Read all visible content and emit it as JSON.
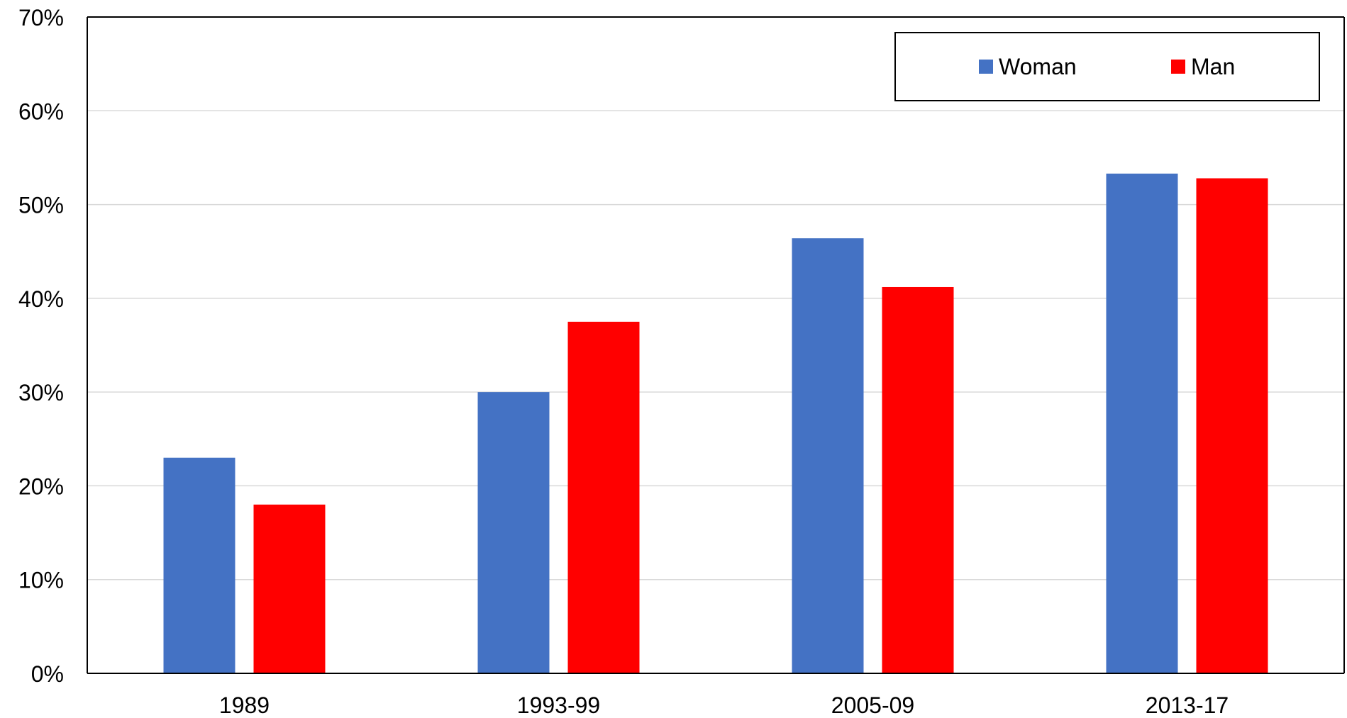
{
  "chart_data": {
    "type": "bar",
    "title": "",
    "xlabel": "",
    "ylabel": "",
    "categories": [
      "1989",
      "1993-99",
      "2005-09",
      "2013-17"
    ],
    "series": [
      {
        "name": "Woman",
        "color": "#4472C4",
        "values": [
          0.23,
          0.3,
          0.464,
          0.533
        ]
      },
      {
        "name": "Man",
        "color": "#FF0000",
        "values": [
          0.18,
          0.375,
          0.412,
          0.528
        ]
      }
    ],
    "ylim": [
      0,
      0.7
    ],
    "yticks": [
      0,
      0.1,
      0.2,
      0.3,
      0.4,
      0.5,
      0.6,
      0.7
    ],
    "ytick_labels": [
      "0%",
      "10%",
      "20%",
      "30%",
      "40%",
      "50%",
      "60%",
      "70%"
    ],
    "grid": "horizontal",
    "legend_position": "top-right"
  }
}
